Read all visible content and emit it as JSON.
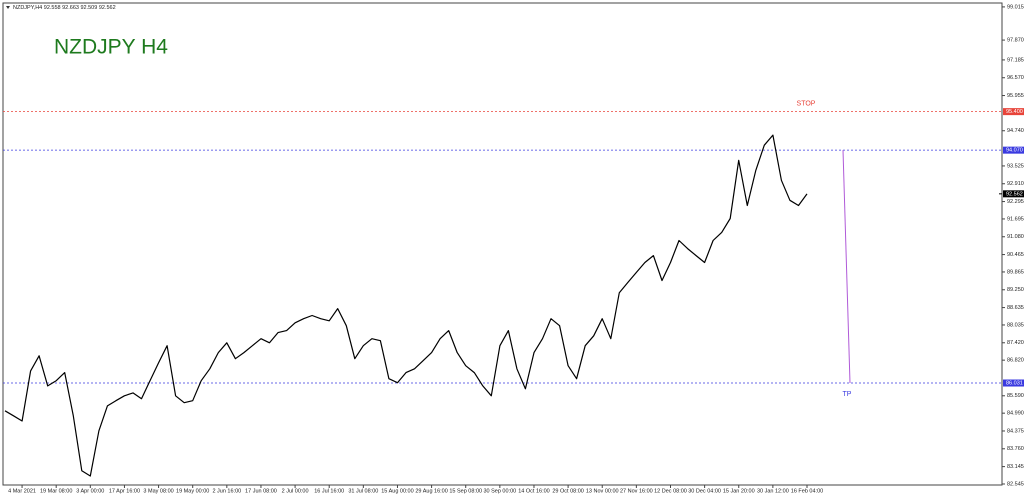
{
  "chart_data": {
    "type": "line",
    "header": "NZDJPY,H4  92.558 92.663 92.509 92.562",
    "title": "NZDJPY H4",
    "color": "#000000",
    "categories": [
      null,
      null,
      "4 Mar 2021",
      null,
      null,
      null,
      "19 Mar 08:00",
      null,
      null,
      null,
      "3 Apr 00:00",
      null,
      null,
      null,
      "17 Apr 16:00",
      null,
      null,
      null,
      "3 May 08:00",
      null,
      null,
      null,
      "19 May 00:00",
      null,
      null,
      null,
      "2 Jun 16:00",
      null,
      null,
      null,
      "17 Jun 08:00",
      null,
      null,
      null,
      "2 Jul 00:00",
      null,
      null,
      null,
      "16 Jul 16:00",
      null,
      null,
      null,
      "31 Jul 08:00",
      null,
      null,
      null,
      "15 Aug 00:00",
      null,
      null,
      null,
      "29 Aug 16:00",
      null,
      null,
      null,
      "15 Sep 08:00",
      null,
      null,
      null,
      "30 Sep 00:00",
      null,
      null,
      null,
      "14 Oct 16:00",
      null,
      null,
      null,
      "29 Oct 08:00",
      null,
      null,
      null,
      "13 Nov 00:00",
      null,
      null,
      null,
      "27 Nov 16:00",
      null,
      null,
      null,
      "12 Dec 08:00",
      null,
      null,
      null,
      "30 Dec 04:00",
      null,
      null,
      null,
      "15 Jan 20:00",
      null,
      null,
      null,
      "30 Jan 12:00",
      null,
      null,
      null,
      "16 Feb 04:00"
    ],
    "values": [
      85.07,
      84.9,
      84.72,
      86.45,
      86.97,
      85.93,
      86.11,
      86.39,
      84.9,
      83.0,
      82.82,
      84.38,
      85.24,
      85.42,
      85.59,
      85.69,
      85.49,
      86.11,
      86.73,
      87.32,
      85.59,
      85.35,
      85.42,
      86.11,
      86.52,
      87.08,
      87.42,
      86.87,
      87.08,
      87.32,
      87.56,
      87.42,
      87.77,
      87.84,
      88.11,
      88.25,
      88.36,
      88.25,
      88.18,
      88.6,
      88.01,
      86.87,
      87.32,
      87.56,
      87.49,
      86.18,
      86.04,
      86.39,
      86.52,
      86.8,
      87.08,
      87.56,
      87.84,
      87.08,
      86.63,
      86.39,
      85.93,
      85.59,
      87.32,
      87.84,
      86.52,
      85.83,
      87.08,
      87.56,
      88.25,
      88.01,
      86.63,
      86.18,
      87.32,
      87.66,
      88.25,
      87.56,
      89.15,
      89.5,
      89.85,
      90.19,
      90.43,
      89.57,
      90.19,
      90.95,
      90.67,
      90.43,
      90.19,
      90.95,
      91.23,
      91.71,
      93.72,
      92.16,
      93.37,
      94.24,
      94.59,
      93.03,
      92.34,
      92.16,
      92.56
    ],
    "ylim": [
      82.51,
      99.15
    ],
    "yticks": [
      99.015,
      {
        "value": 97.87,
        "label": "97.870"
      },
      97.185,
      {
        "value": 96.57,
        "label": "96.570"
      },
      95.955,
      {
        "value": 94.74,
        "label": "94.740"
      },
      93.525,
      {
        "value": 92.91,
        "label": "92.910"
      },
      92.295,
      91.695,
      {
        "value": 91.08,
        "label": "91.080"
      },
      90.465,
      89.865,
      {
        "value": 89.25,
        "label": "89.250"
      },
      88.635,
      88.035,
      {
        "value": 87.42,
        "label": "87.420"
      },
      {
        "value": 86.82,
        "label": "86.820"
      },
      {
        "value": 85.59,
        "label": "85.590"
      },
      {
        "value": 84.99,
        "label": "84.990"
      },
      84.375,
      {
        "value": 83.76,
        "label": "83.760"
      },
      83.145,
      82.545
    ],
    "levels": [
      {
        "name": "STOP",
        "value": 95.4,
        "label": "95.400",
        "color": "#e8443a"
      },
      {
        "value": 94.07,
        "label": "94.070",
        "color": "#3a3ae0"
      },
      {
        "name": "TP",
        "value": 86.031,
        "color": "#3a3ae0"
      }
    ],
    "current_price": 92.562,
    "trend_color": "#b05ad8"
  }
}
